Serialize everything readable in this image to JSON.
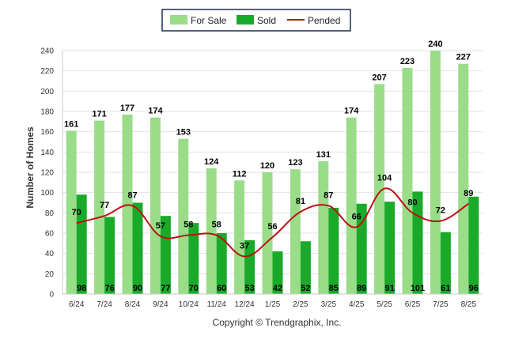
{
  "chart_data": {
    "type": "bar",
    "categories": [
      "6/24",
      "7/24",
      "8/24",
      "9/24",
      "10/24",
      "11/24",
      "12/24",
      "1/25",
      "2/25",
      "3/25",
      "4/25",
      "5/25",
      "6/25",
      "7/25",
      "8/25"
    ],
    "series": [
      {
        "name": "For Sale",
        "type": "bar",
        "color": "#99dd88",
        "values": [
          161,
          171,
          177,
          174,
          153,
          124,
          112,
          120,
          123,
          131,
          174,
          207,
          223,
          240,
          227
        ]
      },
      {
        "name": "Sold",
        "type": "bar",
        "color": "#1aaa2a",
        "values": [
          98,
          76,
          90,
          77,
          70,
          60,
          53,
          42,
          52,
          85,
          89,
          91,
          101,
          61,
          96
        ]
      },
      {
        "name": "Pended",
        "type": "line",
        "color": "#bb1111",
        "values": [
          70,
          77,
          87,
          57,
          58,
          58,
          37,
          56,
          81,
          87,
          66,
          104,
          80,
          72,
          89
        ]
      }
    ],
    "ylabel": "Number of Homes",
    "xlabel": "",
    "ylim": [
      0,
      240
    ],
    "yticks": [
      0,
      20,
      40,
      60,
      80,
      100,
      120,
      140,
      160,
      180,
      200,
      220,
      240
    ],
    "grid": true,
    "legend_position": "top-center"
  },
  "footer": {
    "copyright": "Copyright © Trendgraphix, Inc."
  }
}
